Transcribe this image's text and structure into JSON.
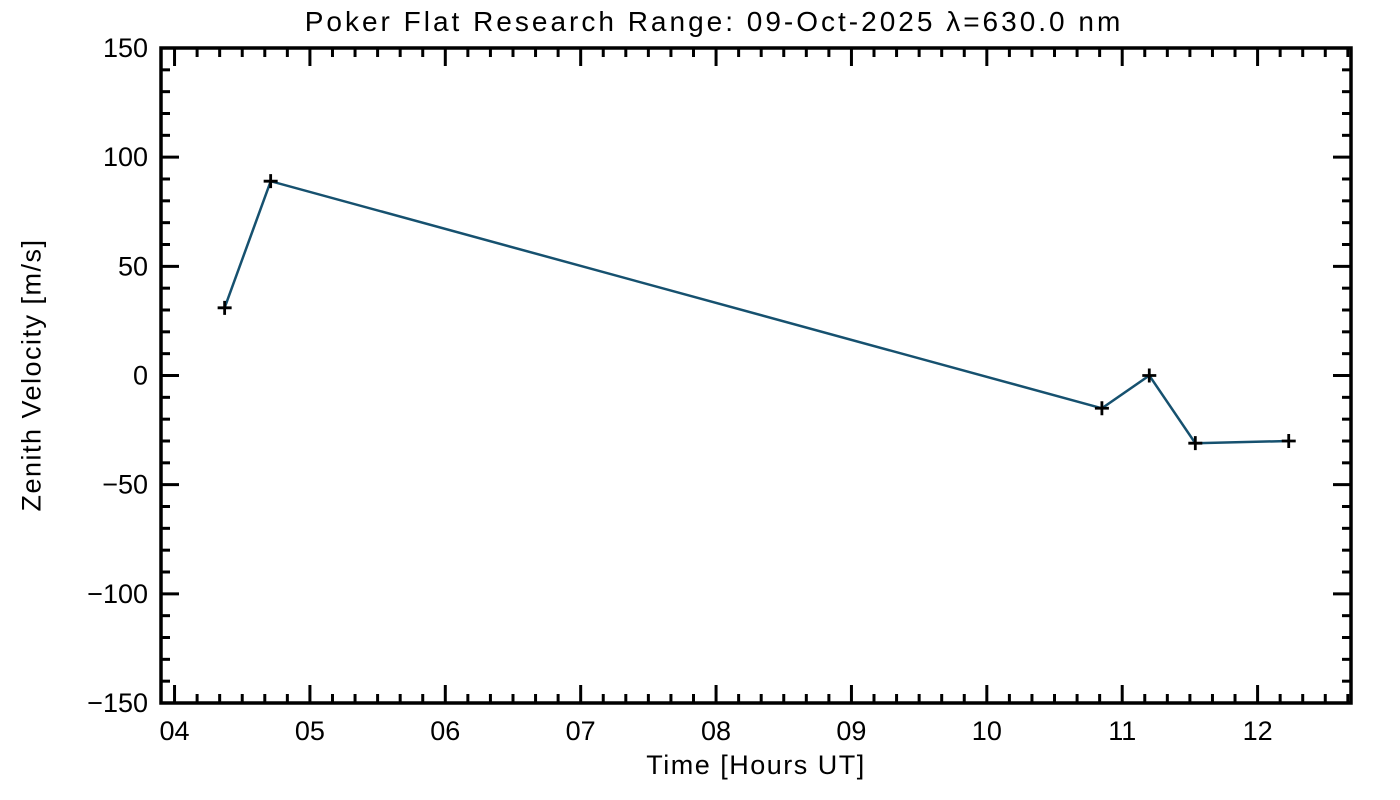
{
  "chart_data": {
    "type": "line",
    "title": "Poker Flat Research Range: 09-Oct-2025 λ=630.0 nm",
    "xlabel": "Time [Hours UT]",
    "ylabel": "Zenith Velocity [m/s]",
    "x": [
      4.37,
      4.71,
      10.85,
      11.2,
      11.54,
      12.23
    ],
    "y": [
      31,
      89,
      -15,
      0,
      -31,
      -30
    ],
    "xlim": [
      3.9,
      12.69
    ],
    "ylim": [
      -150,
      150
    ],
    "xticks": [
      4,
      5,
      6,
      7,
      8,
      9,
      10,
      11,
      12
    ],
    "xtick_labels": [
      "04",
      "05",
      "06",
      "07",
      "08",
      "09",
      "10",
      "11",
      "12"
    ],
    "yticks": [
      150,
      100,
      50,
      0,
      -50,
      -100,
      -150
    ],
    "ytick_labels": [
      "150",
      "100",
      "50",
      "0",
      "-50",
      "-100",
      "-150"
    ],
    "x_minor_divisions": 6,
    "y_minor_divisions": 5,
    "grid": false,
    "legend": null,
    "line_color": "#16516f",
    "marker": "plus",
    "marker_color": "#000000",
    "axis_color": "#000000",
    "background_color": "#ffffff"
  }
}
